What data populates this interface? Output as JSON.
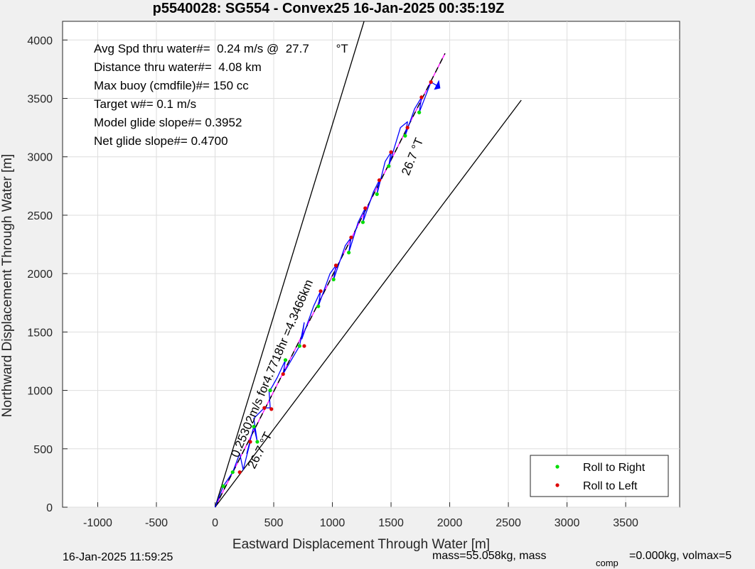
{
  "chart_data": {
    "type": "line",
    "title": "p5540028: SG554 - Convex25 16-Jan-2025 00:35:19Z",
    "xlabel": "Eastward Displacement Through Water [m]",
    "ylabel": "Northward Displacement Through Water [m]",
    "xlim": [
      -1300,
      3960
    ],
    "ylim": [
      0,
      4160
    ],
    "xticks": [
      -1000,
      -500,
      0,
      500,
      1000,
      1500,
      2000,
      2500,
      3000,
      3500
    ],
    "yticks": [
      0,
      500,
      1000,
      1500,
      2000,
      2500,
      3000,
      3500,
      4000
    ],
    "grid": true,
    "legend_location": "bottom-right",
    "stats": [
      "Avg Spd thru water#=  0.24 m/s @  27.7        °T",
      "Distance thru water#=  4.08 km",
      "Max buoy (cmdfile)#= 150 cc",
      "Target w#= 0.1 m/s",
      "Model glide slope#= 0.3952",
      "Net glide slope#= 0.4700"
    ],
    "annotations": {
      "speed": "0.25302m/s for4.7718hr =4.3466km",
      "heading_lower": "26.7 °T",
      "heading_upper": "26.7 °T"
    },
    "footer_left": "16-Jan-2025 11:59:25",
    "footer_right_a": "mass=55.058kg, mass",
    "footer_right_sub": "comp",
    "footer_right_b": "=0.000kg, volmax=5",
    "reference_lines": [
      {
        "color": "#000000",
        "x": [
          0,
          1270
        ],
        "y": [
          0,
          4160
        ]
      },
      {
        "color": "#000000",
        "x": [
          0,
          2610
        ],
        "y": [
          0,
          3485
        ]
      },
      {
        "color": "#ff00ff",
        "x": [
          0,
          1960
        ],
        "y": [
          0,
          3885
        ]
      },
      {
        "color": "#000000",
        "dashed": true,
        "x": [
          0,
          1960
        ],
        "y": [
          0,
          3885
        ]
      }
    ],
    "track": {
      "color": "#0000ff",
      "x": [
        0,
        70,
        150,
        210,
        240,
        300,
        270,
        330,
        360,
        330,
        420,
        470,
        460,
        480,
        530,
        600,
        580,
        720,
        760,
        740,
        840,
        900,
        880,
        980,
        1030,
        1010,
        1110,
        1160,
        1140,
        1220,
        1280,
        1260,
        1350,
        1400,
        1380,
        1450,
        1500,
        1480,
        1580,
        1640,
        1620,
        1700,
        1760,
        1740,
        1840,
        1890
      ],
      "y": [
        0,
        180,
        300,
        460,
        320,
        560,
        460,
        690,
        560,
        760,
        850,
        850,
        1000,
        1020,
        1110,
        1260,
        1140,
        1380,
        1580,
        1440,
        1720,
        1850,
        1720,
        2000,
        2070,
        1950,
        2240,
        2310,
        2180,
        2440,
        2560,
        2440,
        2700,
        2800,
        2680,
        2960,
        3040,
        2920,
        3250,
        3300,
        3180,
        3410,
        3510,
        3380,
        3640,
        3610
      ]
    },
    "roll_right": {
      "name": "Roll to Right",
      "color": "#00dd00",
      "x": [
        70,
        150,
        330,
        360,
        470,
        600,
        720,
        880,
        1010,
        1140,
        1260,
        1380,
        1480,
        1620,
        1740
      ],
      "y": [
        180,
        300,
        690,
        560,
        1000,
        1260,
        1380,
        1720,
        1950,
        2180,
        2440,
        2680,
        2920,
        3180,
        3380
      ]
    },
    "roll_left": {
      "name": "Roll to Left",
      "color": "#dd0000",
      "x": [
        210,
        300,
        420,
        480,
        580,
        760,
        900,
        1030,
        1160,
        1280,
        1400,
        1500,
        1640,
        1760,
        1840
      ],
      "y": [
        300,
        560,
        850,
        840,
        1140,
        1380,
        1850,
        2070,
        2310,
        2560,
        2800,
        3040,
        3250,
        3510,
        3640
      ]
    }
  }
}
